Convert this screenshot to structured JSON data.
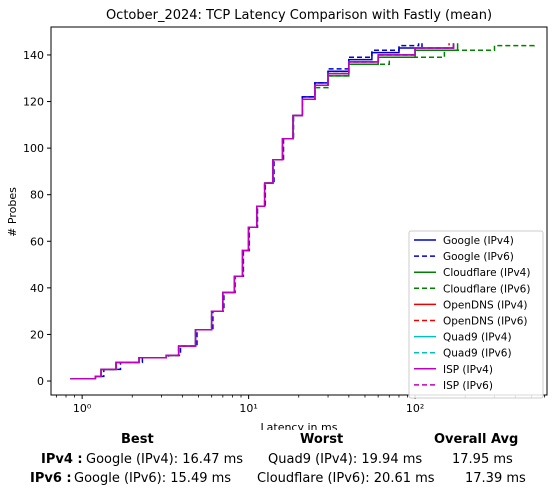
{
  "chart_data": {
    "type": "line",
    "title": "October_2024: TCP Latency Comparison with Fastly (mean)",
    "xlabel": "Latency in ms",
    "ylabel": "# Probes",
    "xscale": "log",
    "xlim": [
      0.65,
      620
    ],
    "ylim": [
      -6,
      152
    ],
    "xticks": [
      {
        "value": 1,
        "label": "10⁰"
      },
      {
        "value": 10,
        "label": "10¹"
      },
      {
        "value": 100,
        "label": "10²"
      }
    ],
    "yticks": [
      0,
      20,
      40,
      60,
      80,
      100,
      120,
      140
    ],
    "grid": false,
    "legend_position": "lower-right",
    "series": [
      {
        "name": "Google (IPv4)",
        "color": "#0000cc",
        "dash": "solid",
        "x": [
          0.85,
          1.2,
          1.3,
          1.6,
          2.2,
          3.2,
          3.8,
          4.8,
          6.0,
          7.0,
          8.2,
          9.2,
          10.0,
          11.2,
          12.5,
          14.0,
          16.0,
          18.5,
          21.0,
          25.0,
          30.0,
          40.0,
          55.0,
          80.0,
          110.0
        ],
        "y": [
          1,
          2,
          5,
          8,
          10,
          11,
          15,
          22,
          30,
          38,
          45,
          56,
          66,
          75,
          85,
          95,
          104,
          114,
          122,
          128,
          133,
          138,
          141,
          143,
          145
        ]
      },
      {
        "name": "Google (IPv6)",
        "color": "#0000cc",
        "dash": "dashed",
        "x": [
          0.85,
          1.2,
          1.35,
          1.7,
          2.3,
          3.3,
          3.9,
          4.9,
          6.1,
          7.1,
          8.3,
          9.3,
          10.1,
          11.3,
          12.6,
          14.2,
          16.2,
          18.6,
          21.0,
          25.0,
          30.0,
          40.0,
          55.0,
          80.0,
          105.0
        ],
        "y": [
          1,
          2,
          5,
          8,
          10,
          11,
          15,
          22,
          30,
          38,
          45,
          56,
          66,
          75,
          85,
          95,
          104,
          114,
          122,
          128,
          134,
          139,
          142,
          144,
          145
        ]
      },
      {
        "name": "Cloudflare (IPv4)",
        "color": "#008000",
        "dash": "solid",
        "x": [
          0.85,
          1.2,
          1.3,
          1.6,
          2.2,
          3.2,
          3.8,
          4.8,
          6.0,
          7.0,
          8.2,
          9.2,
          10.0,
          11.2,
          12.5,
          14.0,
          16.0,
          18.5,
          21.0,
          25.0,
          30.0,
          40.0,
          60.0,
          100.0,
          180.0
        ],
        "y": [
          1,
          2,
          5,
          8,
          10,
          11,
          15,
          22,
          30,
          38,
          45,
          56,
          66,
          75,
          85,
          95,
          104,
          114,
          121,
          127,
          131,
          136,
          139,
          142,
          145
        ]
      },
      {
        "name": "Cloudflare (IPv6)",
        "color": "#008000",
        "dash": "dashed",
        "x": [
          0.85,
          1.2,
          1.3,
          1.6,
          2.2,
          3.2,
          3.8,
          4.8,
          6.0,
          7.0,
          8.2,
          9.2,
          10.0,
          11.2,
          12.5,
          14.0,
          16.0,
          18.5,
          21.0,
          25.0,
          30.0,
          40.0,
          70.0,
          150.0,
          300.0,
          520.0
        ],
        "y": [
          1,
          2,
          5,
          8,
          10,
          11,
          15,
          22,
          30,
          38,
          45,
          56,
          66,
          75,
          85,
          95,
          104,
          114,
          121,
          126,
          131,
          136,
          139,
          142,
          144,
          145
        ]
      },
      {
        "name": "OpenDNS (IPv4)",
        "color": "#ee0000",
        "dash": "solid",
        "x": [
          0.85,
          1.2,
          1.3,
          1.6,
          2.2,
          3.2,
          3.8,
          4.8,
          6.0,
          7.0,
          8.2,
          9.2,
          10.0,
          11.2,
          12.5,
          14.0,
          16.0,
          18.5,
          21.0,
          25.0,
          30.0,
          40.0,
          60.0,
          100.0,
          170.0
        ],
        "y": [
          1,
          2,
          5,
          8,
          10,
          11,
          15,
          22,
          30,
          38,
          45,
          56,
          66,
          75,
          85,
          95,
          104,
          114,
          121,
          127,
          132,
          137,
          140,
          143,
          145
        ]
      },
      {
        "name": "OpenDNS (IPv6)",
        "color": "#ee0000",
        "dash": "dashed",
        "x": [
          0.85,
          1.2,
          1.3,
          1.6,
          2.2,
          3.2,
          3.8,
          4.8,
          6.0,
          7.0,
          8.2,
          9.2,
          10.0,
          11.2,
          12.5,
          14.0,
          16.0,
          18.5,
          21.0,
          25.0,
          30.0,
          40.0,
          60.0,
          100.0,
          160.0
        ],
        "y": [
          1,
          2,
          5,
          8,
          10,
          11,
          15,
          22,
          30,
          38,
          45,
          56,
          66,
          75,
          85,
          95,
          104,
          114,
          121,
          127,
          132,
          137,
          140,
          143,
          145
        ]
      },
      {
        "name": "Quad9 (IPv4)",
        "color": "#00bfbf",
        "dash": "solid",
        "x": [
          0.85,
          1.2,
          1.3,
          1.6,
          2.2,
          3.2,
          3.8,
          4.8,
          6.0,
          7.0,
          8.2,
          9.2,
          10.0,
          11.2,
          12.5,
          14.0,
          16.0,
          18.5,
          21.0,
          25.0,
          30.0,
          40.0,
          60.0,
          100.0,
          170.0
        ],
        "y": [
          1,
          2,
          5,
          8,
          10,
          11,
          15,
          22,
          30,
          38,
          45,
          56,
          66,
          75,
          85,
          95,
          104,
          114,
          121,
          127,
          132,
          137,
          140,
          143,
          145
        ]
      },
      {
        "name": "Quad9 (IPv6)",
        "color": "#00bfbf",
        "dash": "dashed",
        "x": [
          0.85,
          1.2,
          1.3,
          1.6,
          2.2,
          3.2,
          3.8,
          4.8,
          6.0,
          7.0,
          8.2,
          9.2,
          10.0,
          11.2,
          12.5,
          14.0,
          16.0,
          18.5,
          21.0,
          25.0,
          30.0,
          40.0,
          60.0,
          100.0,
          170.0
        ],
        "y": [
          1,
          2,
          5,
          8,
          10,
          11,
          15,
          22,
          30,
          38,
          45,
          56,
          66,
          75,
          85,
          95,
          104,
          114,
          121,
          127,
          132,
          137,
          140,
          143,
          145
        ]
      },
      {
        "name": "ISP (IPv4)",
        "color": "#bf00bf",
        "dash": "solid",
        "x": [
          0.85,
          1.2,
          1.3,
          1.6,
          2.2,
          3.2,
          3.8,
          4.8,
          6.0,
          7.0,
          8.2,
          9.2,
          10.0,
          11.2,
          12.5,
          14.0,
          16.0,
          18.5,
          21.0,
          25.0,
          30.0,
          40.0,
          60.0,
          100.0,
          170.0
        ],
        "y": [
          1,
          2,
          5,
          8,
          10,
          11,
          15,
          22,
          30,
          38,
          45,
          56,
          66,
          75,
          85,
          95,
          104,
          114,
          121,
          127,
          132,
          137,
          140,
          143,
          145
        ]
      },
      {
        "name": "ISP (IPv6)",
        "color": "#bf00bf",
        "dash": "dashed",
        "x": [
          0.85,
          1.2,
          1.3,
          1.6,
          2.2,
          3.2,
          3.8,
          4.8,
          6.0,
          7.0,
          8.2,
          9.2,
          10.0,
          11.2,
          12.5,
          14.0,
          16.0,
          18.5,
          21.0,
          25.0,
          30.0,
          40.0,
          60.0,
          100.0,
          170.0
        ],
        "y": [
          1,
          2,
          5,
          8,
          10,
          11,
          15,
          22,
          30,
          38,
          45,
          56,
          66,
          75,
          85,
          95,
          104,
          114,
          121,
          127,
          132,
          137,
          140,
          143,
          145
        ]
      }
    ]
  },
  "summary": {
    "headers": {
      "best": "Best",
      "worst": "Worst",
      "avg": "Overall Avg"
    },
    "ipv4": {
      "label": "IPv4 :",
      "best": "Google (IPv4): 16.47 ms",
      "worst": "Quad9 (IPv4): 19.94 ms",
      "avg": "17.95 ms"
    },
    "ipv6": {
      "label": "IPv6 :",
      "best": "Google (IPv6): 15.49 ms",
      "worst": "Cloudflare (IPv6): 20.61 ms",
      "avg": "17.39 ms"
    }
  }
}
